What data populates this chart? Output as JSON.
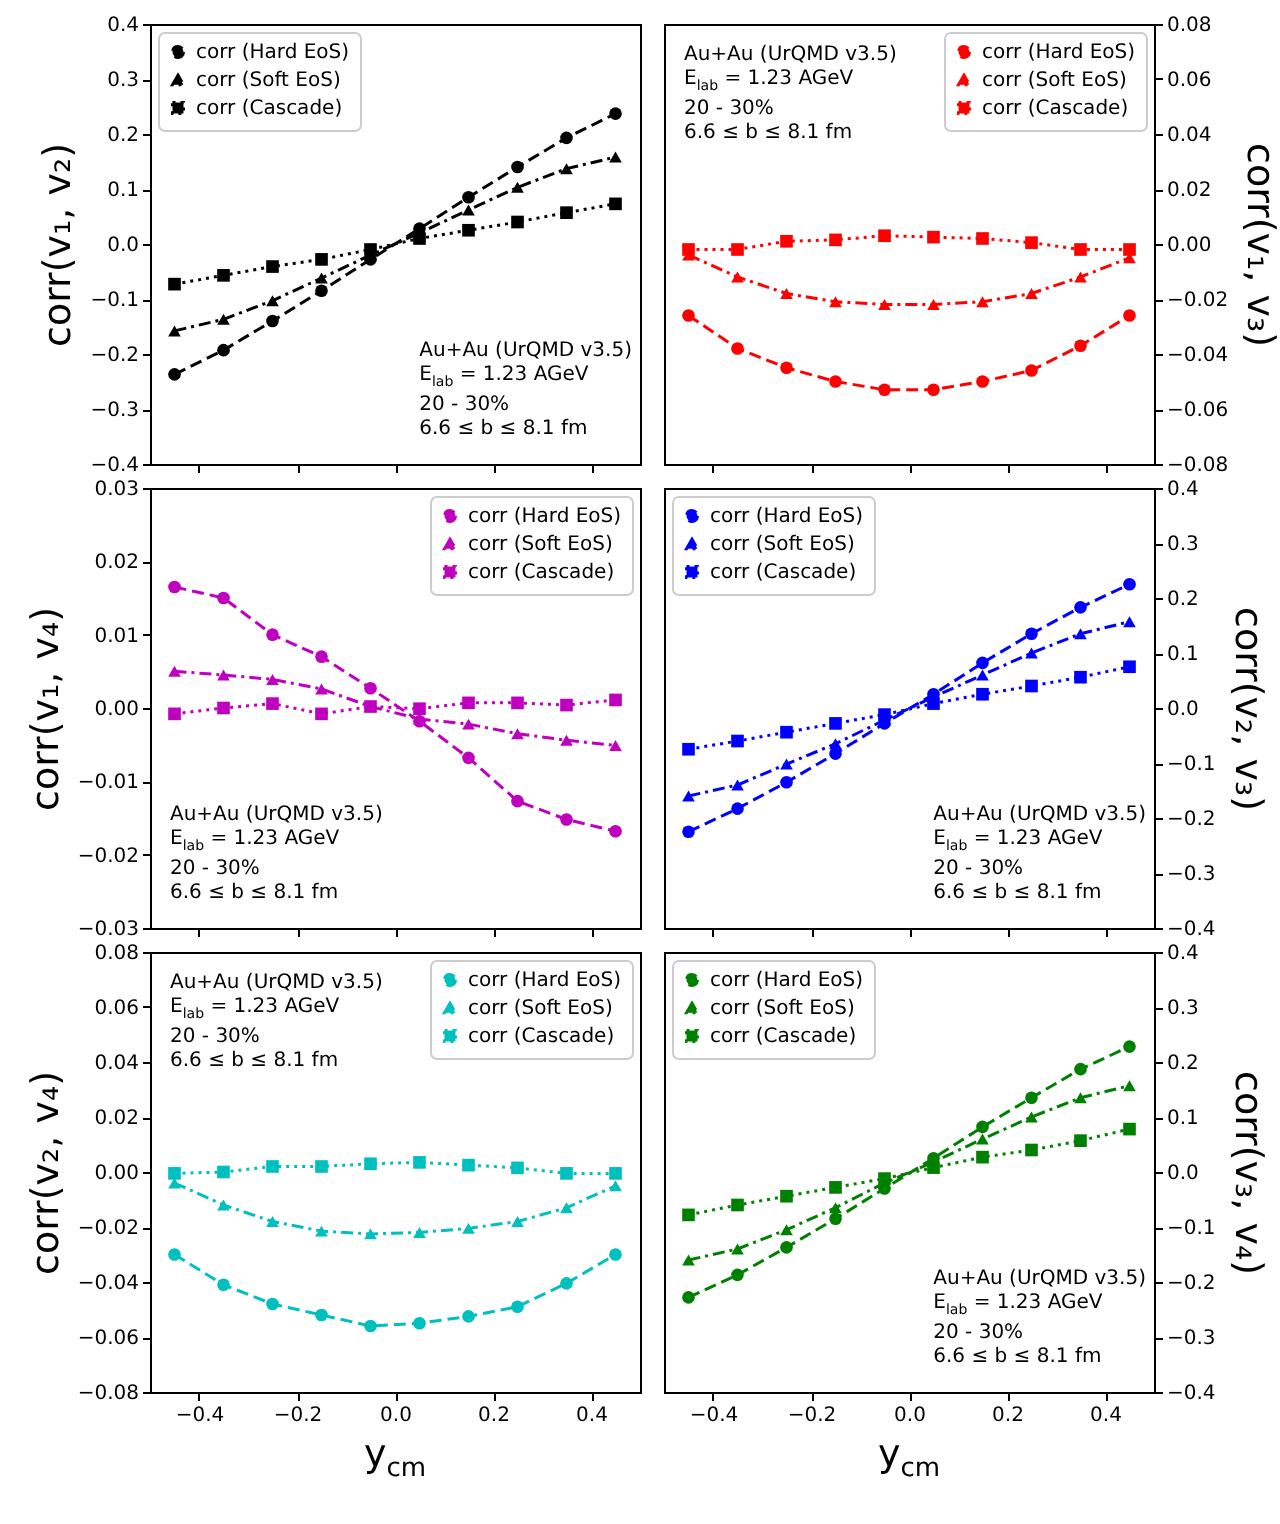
{
  "chart_data": [
    {
      "type": "line",
      "ylabel": "corr(v₁, v₂)",
      "tick_labels": "y",
      "legend": "top left",
      "annotations": [
        "Au+Au (UrQMD v3.5)",
        "E$_{lab}$ = 1.23 AGeV",
        "20 - 30%",
        "6.6 ≤ b ≤ 8.1 fm"
      ],
      "x": [
        -0.45,
        -0.35,
        -0.25,
        -0.15,
        -0.05,
        0.05,
        0.15,
        0.25,
        0.35,
        0.45
      ],
      "xlim": [
        -0.5,
        0.5
      ],
      "xticks": [
        {
          "value": -0.4,
          "label": null
        },
        {
          "value": -0.2,
          "label": null
        },
        {
          "value": 0,
          "label": null
        },
        {
          "value": 0.2,
          "label": null
        },
        {
          "value": 0.4,
          "label": null
        }
      ],
      "ylim": [
        -0.4,
        0.4
      ],
      "yticks": [
        {
          "value": -0.4,
          "label": "−0.4"
        },
        {
          "value": -0.3,
          "label": "−0.3"
        },
        {
          "value": -0.2,
          "label": "−0.2"
        },
        {
          "value": -0.1,
          "label": "−0.1"
        },
        {
          "value": 0,
          "label": "0.0"
        },
        {
          "value": 0.1,
          "label": "0.1"
        },
        {
          "value": 0.2,
          "label": "0.2"
        },
        {
          "value": 0.3,
          "label": "0.3"
        },
        {
          "value": 0.4,
          "label": "0.4"
        }
      ],
      "series": [
        {
          "name": "corr (Hard EoS)",
          "color": "#000000",
          "marker": "circle",
          "line_style": "dashed",
          "values": [
            -0.237,
            -0.193,
            -0.14,
            -0.085,
            -0.028,
            0.028,
            0.085,
            0.14,
            0.193,
            0.237
          ]
        },
        {
          "name": "corr (Soft EoS)",
          "color": "#000000",
          "marker": "triangle",
          "line_style": "dashdot",
          "values": [
            -0.158,
            -0.137,
            -0.103,
            -0.062,
            -0.02,
            0.02,
            0.062,
            0.103,
            0.137,
            0.158
          ]
        },
        {
          "name": "corr (Cascade)",
          "color": "#000000",
          "marker": "square",
          "line_style": "dotted",
          "values": [
            -0.073,
            -0.057,
            -0.041,
            -0.028,
            -0.01,
            0.01,
            0.025,
            0.04,
            0.057,
            0.073
          ]
        }
      ]
    },
    {
      "type": "line",
      "ylabel": "corr(v₁, v₃)",
      "tick_labels": "y",
      "legend": "top right",
      "annotations": [
        "Au+Au (UrQMD v3.5)",
        "E$_{lab}$ = 1.23 AGeV",
        "20 - 30%",
        "6.6 ≤ b ≤ 8.1 fm"
      ],
      "x": [
        -0.45,
        -0.35,
        -0.25,
        -0.15,
        -0.05,
        0.05,
        0.15,
        0.25,
        0.35,
        0.45
      ],
      "xlim": [
        -0.5,
        0.5
      ],
      "xticks": [
        {
          "value": -0.4,
          "label": null
        },
        {
          "value": -0.2,
          "label": null
        },
        {
          "value": 0,
          "label": null
        },
        {
          "value": 0.2,
          "label": null
        },
        {
          "value": 0.4,
          "label": null
        }
      ],
      "ylim": [
        -0.08,
        0.08
      ],
      "yticks": [
        {
          "value": -0.08,
          "label": "−0.08"
        },
        {
          "value": -0.06,
          "label": "−0.06"
        },
        {
          "value": -0.04,
          "label": "−0.04"
        },
        {
          "value": -0.02,
          "label": "−0.02"
        },
        {
          "value": 0,
          "label": "0.00"
        },
        {
          "value": 0.02,
          "label": "0.02"
        },
        {
          "value": 0.04,
          "label": "0.04"
        },
        {
          "value": 0.06,
          "label": "0.06"
        },
        {
          "value": 0.08,
          "label": "0.08"
        }
      ],
      "series": [
        {
          "name": "corr (Hard EoS)",
          "color": "#ff0000",
          "marker": "circle",
          "line_style": "dashed",
          "values": [
            -0.026,
            -0.038,
            -0.045,
            -0.05,
            -0.053,
            -0.053,
            -0.05,
            -0.046,
            -0.037,
            -0.026
          ]
        },
        {
          "name": "corr (Soft EoS)",
          "color": "#ff0000",
          "marker": "triangle",
          "line_style": "dashdot",
          "values": [
            -0.004,
            -0.012,
            -0.018,
            -0.021,
            -0.022,
            -0.022,
            -0.021,
            -0.018,
            -0.012,
            -0.005
          ]
        },
        {
          "name": "corr (Cascade)",
          "color": "#ff0000",
          "marker": "square",
          "line_style": "dotted",
          "values": [
            -0.002,
            -0.002,
            0.001,
            0.0015,
            0.003,
            0.0025,
            0.002,
            0.0005,
            -0.002,
            -0.002
          ]
        }
      ]
    },
    {
      "type": "line",
      "ylabel": "corr(v₁, v₄)",
      "tick_labels": "y",
      "legend": "top right",
      "annotations": [
        "Au+Au (UrQMD v3.5)",
        "E$_{lab}$ = 1.23 AGeV",
        "20 - 30%",
        "6.6 ≤ b ≤ 8.1 fm"
      ],
      "x": [
        -0.45,
        -0.35,
        -0.25,
        -0.15,
        -0.05,
        0.05,
        0.15,
        0.25,
        0.35,
        0.45
      ],
      "xlim": [
        -0.5,
        0.5
      ],
      "xticks": [
        {
          "value": -0.4,
          "label": null
        },
        {
          "value": -0.2,
          "label": null
        },
        {
          "value": 0,
          "label": null
        },
        {
          "value": 0.2,
          "label": null
        },
        {
          "value": 0.4,
          "label": null
        }
      ],
      "ylim": [
        -0.03,
        0.03
      ],
      "yticks": [
        {
          "value": -0.03,
          "label": "−0.03"
        },
        {
          "value": -0.02,
          "label": "−0.02"
        },
        {
          "value": -0.01,
          "label": "−0.01"
        },
        {
          "value": 0,
          "label": "0.00"
        },
        {
          "value": 0.01,
          "label": "0.01"
        },
        {
          "value": 0.02,
          "label": "0.02"
        },
        {
          "value": 0.03,
          "label": "0.03"
        }
      ],
      "series": [
        {
          "name": "corr (Hard EoS)",
          "color": "#bf00bf",
          "marker": "circle",
          "line_style": "dashed",
          "values": [
            0.0165,
            0.015,
            0.01,
            0.007,
            0.0027,
            -0.0018,
            -0.0068,
            -0.0127,
            -0.0152,
            -0.0168
          ]
        },
        {
          "name": "corr (Soft EoS)",
          "color": "#bf00bf",
          "marker": "triangle",
          "line_style": "dashdot",
          "values": [
            0.005,
            0.0045,
            0.0039,
            0.0026,
            0.0002,
            -0.0015,
            -0.0022,
            -0.0035,
            -0.0044,
            -0.0051
          ]
        },
        {
          "name": "corr (Cascade)",
          "color": "#bf00bf",
          "marker": "square",
          "line_style": "dotted",
          "values": [
            -0.0008,
            0,
            0.0006,
            -0.0008,
            0.0002,
            -0.0001,
            0.0007,
            0.0007,
            0.0004,
            0.0011
          ]
        }
      ]
    },
    {
      "type": "line",
      "ylabel": "corr(v₂, v₃)",
      "tick_labels": "y",
      "legend": "top left",
      "annotations": [
        "Au+Au (UrQMD v3.5)",
        "E$_{lab}$ = 1.23 AGeV",
        "20 - 30%",
        "6.6 ≤ b ≤ 8.1 fm"
      ],
      "x": [
        -0.45,
        -0.35,
        -0.25,
        -0.15,
        -0.05,
        0.05,
        0.15,
        0.25,
        0.35,
        0.45
      ],
      "xlim": [
        -0.5,
        0.5
      ],
      "xticks": [
        {
          "value": -0.4,
          "label": null
        },
        {
          "value": -0.2,
          "label": null
        },
        {
          "value": 0,
          "label": null
        },
        {
          "value": 0.2,
          "label": null
        },
        {
          "value": 0.4,
          "label": null
        }
      ],
      "ylim": [
        -0.4,
        0.4
      ],
      "yticks": [
        {
          "value": -0.4,
          "label": "−0.4"
        },
        {
          "value": -0.3,
          "label": "−0.3"
        },
        {
          "value": -0.2,
          "label": "−0.2"
        },
        {
          "value": -0.1,
          "label": "−0.1"
        },
        {
          "value": 0,
          "label": "0.0"
        },
        {
          "value": 0.1,
          "label": "0.1"
        },
        {
          "value": 0.2,
          "label": "0.2"
        },
        {
          "value": 0.3,
          "label": "0.3"
        },
        {
          "value": 0.4,
          "label": "0.4"
        }
      ],
      "series": [
        {
          "name": "corr (Hard EoS)",
          "color": "#0000ff",
          "marker": "circle",
          "line_style": "dashed",
          "values": [
            -0.225,
            -0.183,
            -0.135,
            -0.083,
            -0.028,
            0.025,
            0.082,
            0.135,
            0.183,
            0.225
          ]
        },
        {
          "name": "corr (Soft EoS)",
          "color": "#0000ff",
          "marker": "triangle",
          "line_style": "dashdot",
          "values": [
            -0.16,
            -0.14,
            -0.102,
            -0.065,
            -0.022,
            0.02,
            0.06,
            0.1,
            0.135,
            0.157
          ]
        },
        {
          "name": "corr (Cascade)",
          "color": "#0000ff",
          "marker": "square",
          "line_style": "dotted",
          "values": [
            -0.075,
            -0.06,
            -0.044,
            -0.028,
            -0.012,
            0.008,
            0.025,
            0.04,
            0.056,
            0.075
          ]
        }
      ]
    },
    {
      "type": "line",
      "xlabel": "y$_{cm}$",
      "ylabel": "corr(v₂, v₄)",
      "legend": "top right",
      "annotations": [
        "Au+Au (UrQMD v3.5)",
        "E$_{lab}$ = 1.23 AGeV",
        "20 - 30%",
        "6.6 ≤ b ≤ 8.1 fm"
      ],
      "x": [
        -0.45,
        -0.35,
        -0.25,
        -0.15,
        -0.05,
        0.05,
        0.15,
        0.25,
        0.35,
        0.45
      ],
      "xlim": [
        -0.5,
        0.5
      ],
      "xticks": [
        {
          "value": -0.4,
          "label": "−0.4"
        },
        {
          "value": -0.2,
          "label": "−0.2"
        },
        {
          "value": 0,
          "label": "0.0"
        },
        {
          "value": 0.2,
          "label": "0.2"
        },
        {
          "value": 0.4,
          "label": "0.4"
        }
      ],
      "ylim": [
        -0.08,
        0.08
      ],
      "yticks": [
        {
          "value": -0.08,
          "label": "−0.08"
        },
        {
          "value": -0.06,
          "label": "−0.06"
        },
        {
          "value": -0.04,
          "label": "−0.04"
        },
        {
          "value": -0.02,
          "label": "−0.02"
        },
        {
          "value": 0,
          "label": "0.00"
        },
        {
          "value": 0.02,
          "label": "0.02"
        },
        {
          "value": 0.04,
          "label": "0.04"
        },
        {
          "value": 0.06,
          "label": "0.06"
        },
        {
          "value": 0.08,
          "label": "0.08"
        }
      ],
      "series": [
        {
          "name": "corr (Hard EoS)",
          "color": "#00bfbf",
          "marker": "circle",
          "line_style": "dashed",
          "values": [
            -0.03,
            -0.041,
            -0.048,
            -0.052,
            -0.056,
            -0.055,
            -0.0525,
            -0.049,
            -0.0405,
            -0.03
          ]
        },
        {
          "name": "corr (Soft EoS)",
          "color": "#00bfbf",
          "marker": "triangle",
          "line_style": "dashdot",
          "values": [
            -0.004,
            -0.012,
            -0.018,
            -0.0215,
            -0.0225,
            -0.022,
            -0.0205,
            -0.018,
            -0.013,
            -0.005
          ]
        },
        {
          "name": "corr (Cascade)",
          "color": "#00bfbf",
          "marker": "square",
          "line_style": "dotted",
          "values": [
            -0.0005,
            0,
            0.002,
            0.002,
            0.003,
            0.0035,
            0.0025,
            0.0015,
            -0.0005,
            -0.0005
          ]
        }
      ]
    },
    {
      "type": "line",
      "xlabel": "y$_{cm}$",
      "ylabel": "corr(v₃, v₄)",
      "legend": "top left",
      "annotations": [
        "Au+Au (UrQMD v3.5)",
        "E$_{lab}$ = 1.23 AGeV",
        "20 - 30%",
        "6.6 ≤ b ≤ 8.1 fm"
      ],
      "x": [
        -0.45,
        -0.35,
        -0.25,
        -0.15,
        -0.05,
        0.05,
        0.15,
        0.25,
        0.35,
        0.45
      ],
      "xlim": [
        -0.5,
        0.5
      ],
      "xticks": [
        {
          "value": -0.4,
          "label": "−0.4"
        },
        {
          "value": -0.2,
          "label": "−0.2"
        },
        {
          "value": 0,
          "label": "0.0"
        },
        {
          "value": 0.2,
          "label": "0.2"
        },
        {
          "value": 0.4,
          "label": "0.4"
        }
      ],
      "ylim": [
        -0.4,
        0.4
      ],
      "yticks": [
        {
          "value": -0.4,
          "label": "−0.4"
        },
        {
          "value": -0.3,
          "label": "−0.3"
        },
        {
          "value": -0.2,
          "label": "−0.2"
        },
        {
          "value": -0.1,
          "label": "−0.1"
        },
        {
          "value": 0,
          "label": "0.0"
        },
        {
          "value": 0.1,
          "label": "0.1"
        },
        {
          "value": 0.2,
          "label": "0.2"
        },
        {
          "value": 0.3,
          "label": "0.3"
        },
        {
          "value": 0.4,
          "label": "0.4"
        }
      ],
      "series": [
        {
          "name": "corr (Hard EoS)",
          "color": "#008000",
          "marker": "circle",
          "line_style": "dashed",
          "values": [
            -0.228,
            -0.187,
            -0.137,
            -0.085,
            -0.03,
            0.025,
            0.082,
            0.135,
            0.187,
            0.228
          ]
        },
        {
          "name": "corr (Soft EoS)",
          "color": "#008000",
          "marker": "triangle",
          "line_style": "dashdot",
          "values": [
            -0.16,
            -0.14,
            -0.105,
            -0.065,
            -0.02,
            0.018,
            0.06,
            0.1,
            0.135,
            0.157
          ]
        },
        {
          "name": "corr (Cascade)",
          "color": "#008000",
          "marker": "square",
          "line_style": "dotted",
          "values": [
            -0.078,
            -0.06,
            -0.044,
            -0.028,
            -0.012,
            0.008,
            0.027,
            0.04,
            0.057,
            0.078
          ]
        }
      ]
    }
  ]
}
